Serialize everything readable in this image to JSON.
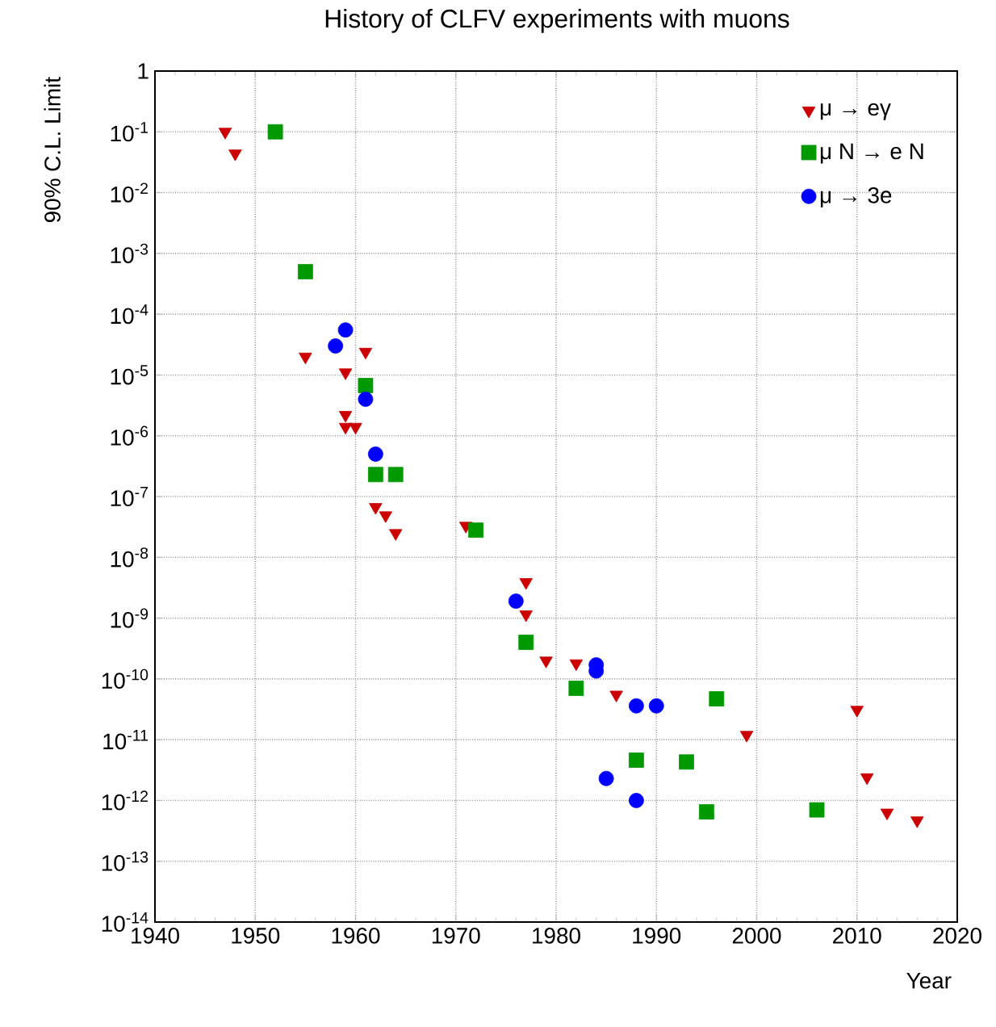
{
  "chart_data": {
    "type": "scatter",
    "title": "History of CLFV experiments with muons",
    "xlabel": "Year",
    "ylabel": "90% C.L. Limit",
    "xlim": [
      1940,
      2020
    ],
    "xticks": [
      1940,
      1950,
      1960,
      1970,
      1980,
      1990,
      2000,
      2010,
      2020
    ],
    "ylim": [
      1e-14,
      1
    ],
    "yticks": [
      1,
      {
        "value": 0.1,
        "label": "10$^{-1}$"
      },
      {
        "value": 0.01,
        "label": "10$^{-2}$"
      },
      {
        "value": 0.001,
        "label": "10$^{-3}$"
      },
      {
        "value": 0.0001,
        "label": "10$^{-4}$"
      },
      {
        "value": 1e-05,
        "label": "10$^{-5}$"
      },
      {
        "value": 1e-06,
        "label": "10$^{-6}$"
      },
      {
        "value": 1e-07,
        "label": "10$^{-7}$"
      },
      {
        "value": 1e-08,
        "label": "10$^{-8}$"
      },
      {
        "value": 1e-09,
        "label": "10$^{-9}$"
      },
      {
        "value": 1e-10,
        "label": "10$^{-10}$"
      },
      {
        "value": 1e-11,
        "label": "10$^{-11}$"
      },
      {
        "value": 1e-12,
        "label": "10$^{-12}$"
      },
      {
        "value": 1e-13,
        "label": "10$^{-13}$"
      },
      {
        "value": 1e-14,
        "label": "10$^{-14}$"
      }
    ],
    "log": "y",
    "grid": true,
    "legend": "top right",
    "series": [
      {
        "name": "μ → eγ",
        "color": "#cc0000",
        "marker": "triangle",
        "x": [
          1947,
          1948,
          1955,
          1959,
          1959,
          1959,
          1960,
          1961,
          1962,
          1963,
          1964,
          1971,
          1977,
          1977,
          1979,
          1982,
          1986,
          1999,
          2010,
          2011,
          2013,
          2016
        ],
        "values": [
          0.1,
          0.044,
          2e-05,
          1.1e-05,
          2.2e-06,
          1.4e-06,
          1.4e-06,
          2.4e-05,
          6.7e-08,
          4.9e-08,
          2.5e-08,
          3.3e-08,
          3.9e-09,
          1.15e-09,
          2e-10,
          1.8e-10,
          5.5e-11,
          1.2e-11,
          3.1e-11,
          2.4e-12,
          6.3e-13,
          4.7e-13
        ]
      },
      {
        "name": "μ N → e N",
        "color": "#009900",
        "marker": "square",
        "x": [
          1952,
          1955,
          1961,
          1962,
          1964,
          1972,
          1977,
          1982,
          1988,
          1993,
          1995,
          1996,
          2006
        ],
        "values": [
          0.1,
          0.0005,
          6.7e-06,
          2.3e-07,
          2.3e-07,
          2.8e-08,
          4e-10,
          7e-11,
          4.6e-12,
          4.3e-12,
          6.5e-13,
          4.7e-11,
          7e-13
        ]
      },
      {
        "name": "μ → 3e",
        "color": "#0000ff",
        "marker": "circle",
        "x": [
          1958,
          1959,
          1961,
          1962,
          1976,
          1984,
          1984,
          1985,
          1988,
          1990,
          1988
        ],
        "values": [
          3e-05,
          5.5e-05,
          4e-06,
          5e-07,
          1.9e-09,
          1.7e-10,
          1.35e-10,
          2.3e-12,
          3.6e-11,
          3.6e-11,
          1e-12
        ]
      }
    ]
  }
}
